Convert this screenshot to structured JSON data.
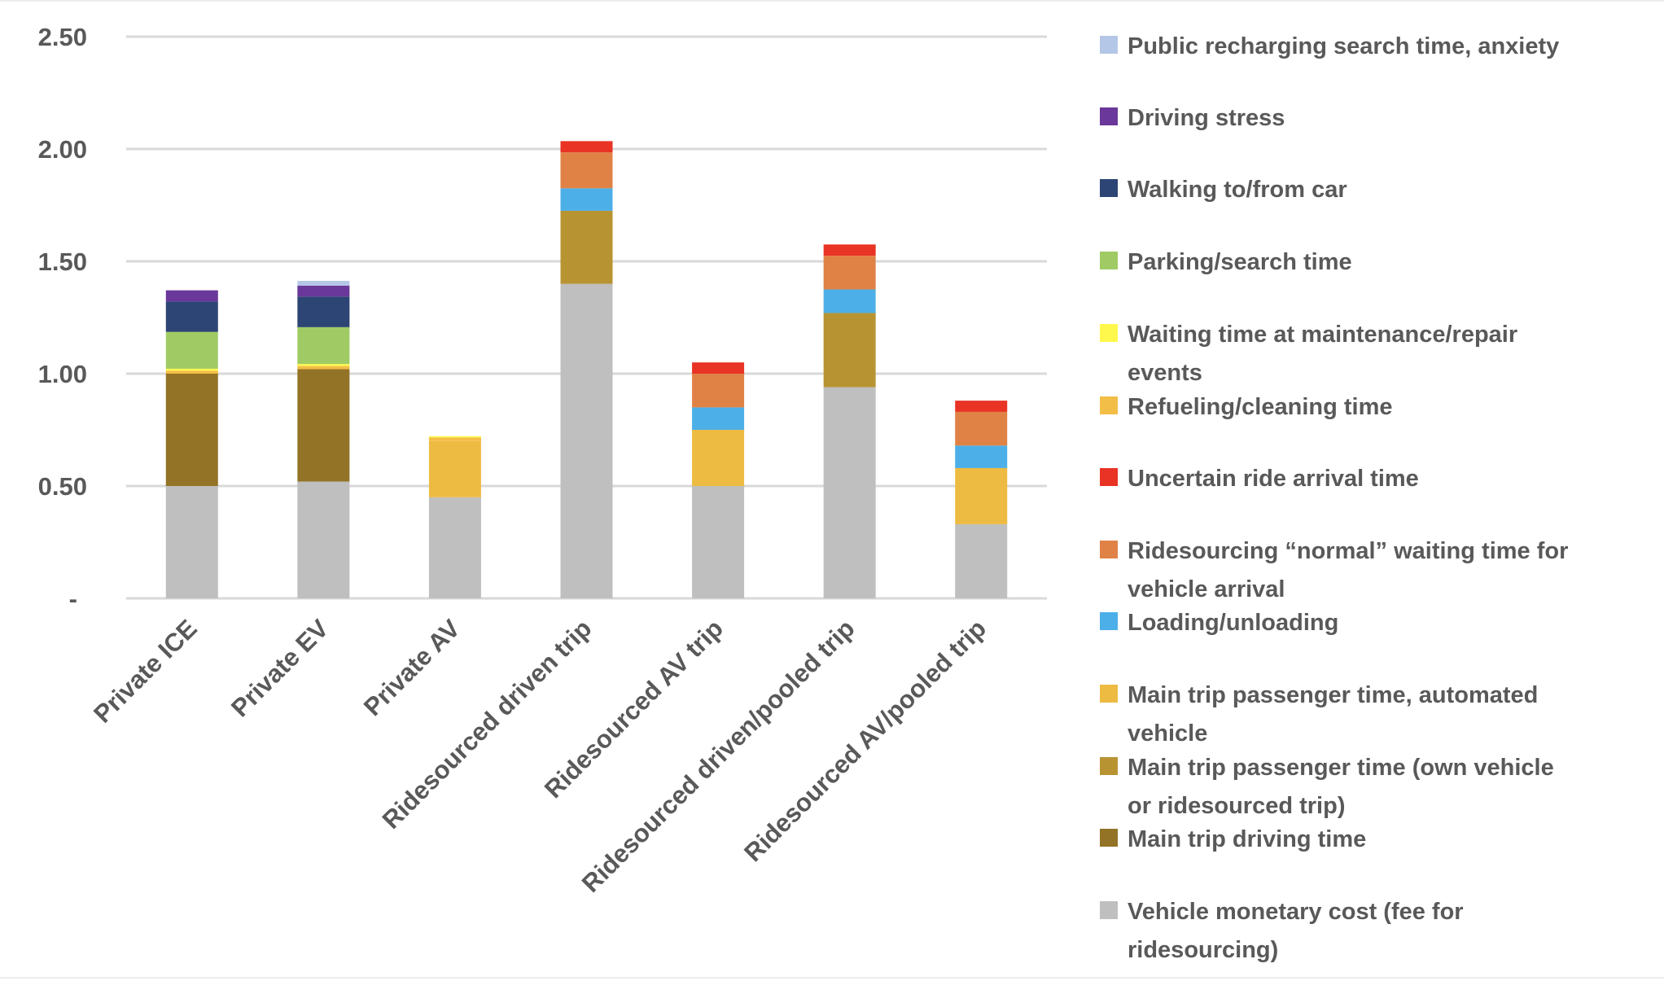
{
  "chart_data": {
    "type": "bar",
    "stacked": true,
    "title": "",
    "xlabel": "",
    "ylabel": "",
    "ylim": [
      0,
      2.5
    ],
    "yticks": [
      {
        "value": 0,
        "label": "-"
      },
      {
        "value": 0.5,
        "label": "0.50"
      },
      {
        "value": 1.0,
        "label": "1.00"
      },
      {
        "value": 1.5,
        "label": "1.50"
      },
      {
        "value": 2.0,
        "label": "2.00"
      },
      {
        "value": 2.5,
        "label": "2.50"
      }
    ],
    "grid": true,
    "legend_position": "right",
    "categories": [
      "Private ICE",
      "Private EV",
      "Private AV",
      "Ridesourced driven trip",
      "Ridesourced AV trip",
      "Ridesourced driven/pooled trip",
      "Ridesourced AV/pooled trip"
    ],
    "series": [
      {
        "name": "Vehicle monetary cost (fee for ridesourcing)",
        "legend_lines": [
          "Vehicle monetary cost (fee for",
          "ridesourcing)"
        ],
        "color": "#BFBFBF",
        "values": [
          0.5,
          0.52,
          0.45,
          1.4,
          0.5,
          0.94,
          0.33
        ]
      },
      {
        "name": "Main trip driving time",
        "legend_lines": [
          "Main trip driving time"
        ],
        "color": "#937326",
        "values": [
          0.5,
          0.5,
          0,
          0,
          0,
          0,
          0
        ]
      },
      {
        "name": "Main trip passenger time (own vehicle or ridesourced trip)",
        "legend_lines": [
          "Main trip passenger time (own vehicle",
          "or ridesourced trip)"
        ],
        "color": "#B89332",
        "values": [
          0,
          0,
          0,
          0.325,
          0,
          0.33,
          0
        ]
      },
      {
        "name": "Main trip passenger time, automated vehicle",
        "legend_lines": [
          "Main trip passenger time, automated",
          "vehicle"
        ],
        "color": "#EDBB42",
        "values": [
          0,
          0,
          0.25,
          0,
          0.25,
          0,
          0.25
        ]
      },
      {
        "name": "Loading/unloading",
        "legend_lines": [
          "Loading/unloading"
        ],
        "color": "#4DAFE8",
        "values": [
          0,
          0,
          0,
          0.1,
          0.1,
          0.105,
          0.1
        ]
      },
      {
        "name": "Ridesourcing “normal” waiting time for vehicle arrival",
        "legend_lines": [
          "Ridesourcing “normal” waiting time for",
          "vehicle arrival"
        ],
        "color": "#E08246",
        "values": [
          0,
          0,
          0,
          0.16,
          0.15,
          0.15,
          0.15
        ]
      },
      {
        "name": "Uncertain ride arrival time",
        "legend_lines": [
          "Uncertain ride arrival time"
        ],
        "color": "#E83325",
        "values": [
          0,
          0,
          0,
          0.05,
          0.05,
          0.05,
          0.05
        ]
      },
      {
        "name": "Refueling/cleaning time",
        "legend_lines": [
          "Refueling/cleaning time"
        ],
        "color": "#F3BE47",
        "values": [
          0.013,
          0.014,
          0.016,
          0,
          0,
          0,
          0
        ]
      },
      {
        "name": "Waiting time at maintenance/repair events",
        "legend_lines": [
          "Waiting time at maintenance/repair",
          "events"
        ],
        "color": "#FFF84C",
        "values": [
          0.009,
          0.009,
          0.006,
          0,
          0,
          0,
          0
        ]
      },
      {
        "name": "Parking/search time",
        "legend_lines": [
          "Parking/search time"
        ],
        "color": "#A0CB64",
        "values": [
          0.164,
          0.164,
          0,
          0,
          0,
          0,
          0
        ]
      },
      {
        "name": "Walking to/from car",
        "legend_lines": [
          "Walking to/from car"
        ],
        "color": "#2C4574",
        "values": [
          0.135,
          0.136,
          0,
          0,
          0,
          0,
          0
        ]
      },
      {
        "name": "Driving stress",
        "legend_lines": [
          "Driving stress"
        ],
        "color": "#6A379A",
        "values": [
          0.05,
          0.049,
          0,
          0,
          0,
          0,
          0
        ]
      },
      {
        "name": "Public recharging search time, anxiety",
        "legend_lines": [
          "Public recharging search time, anxiety"
        ],
        "color": "#B4C7E7",
        "values": [
          0,
          0.021,
          0,
          0,
          0,
          0,
          0
        ]
      }
    ],
    "legend_order": [
      12,
      11,
      10,
      9,
      8,
      7,
      6,
      5,
      4,
      3,
      2,
      1,
      0
    ]
  }
}
